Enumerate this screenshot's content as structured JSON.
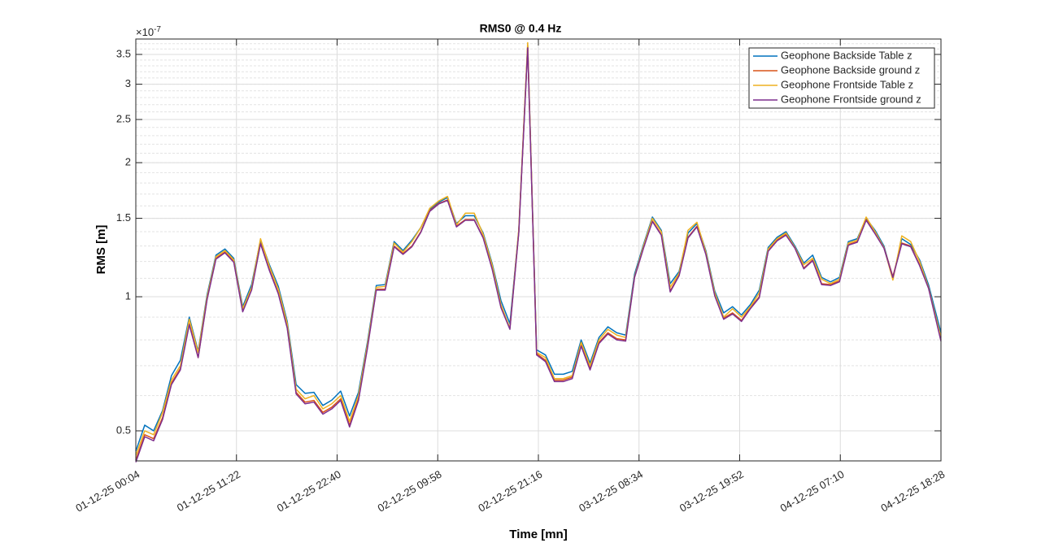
{
  "chart_data": {
    "type": "line",
    "title": "RMS0 @ 0.4 Hz",
    "x_label": "Time [mn]",
    "y_label": "RMS [m]",
    "y_multiplier": "×10",
    "y_exponent": "-7",
    "log_y": true,
    "grid": true,
    "minor_grid": true,
    "legend": "northeast",
    "xlim": [
      "01-12-25 00:04",
      "04-12-25 18:28"
    ],
    "xticks": [
      "01-12-25 00:04",
      "01-12-25 11:22",
      "01-12-25 22:40",
      "02-12-25 09:58",
      "02-12-25 21:16",
      "03-12-25 08:34",
      "03-12-25 19:52",
      "04-12-25 07:10",
      "04-12-25 18:28"
    ],
    "ylim": [
      0.428,
      3.79
    ],
    "yticks": [
      0.5,
      1,
      1.5,
      2,
      2.5,
      3,
      3.5
    ],
    "yminorticks": [
      0.5,
      0.6,
      0.7,
      0.8,
      0.9,
      1,
      1.1,
      1.2,
      1.3,
      1.4,
      1.5,
      1.6,
      1.7,
      1.8,
      1.9,
      2,
      2.1,
      2.2,
      2.3,
      2.4,
      2.5,
      2.6,
      2.7,
      2.8,
      2.9,
      3,
      3.1,
      3.2,
      3.3,
      3.4,
      3.5,
      3.6,
      3.7
    ],
    "x": [
      "01-12-25 00:04",
      "01-12-25 01:04",
      "01-12-25 02:04",
      "01-12-25 03:04",
      "01-12-25 04:04",
      "01-12-25 05:04",
      "01-12-25 06:04",
      "01-12-25 07:04",
      "01-12-25 08:04",
      "01-12-25 09:04",
      "01-12-25 10:04",
      "01-12-25 11:04",
      "01-12-25 12:04",
      "01-12-25 13:04",
      "01-12-25 14:04",
      "01-12-25 15:04",
      "01-12-25 16:04",
      "01-12-25 17:04",
      "01-12-25 18:04",
      "01-12-25 19:04",
      "01-12-25 20:04",
      "01-12-25 21:04",
      "01-12-25 22:04",
      "01-12-25 23:04",
      "02-12-25 00:04",
      "02-12-25 01:04",
      "02-12-25 02:04",
      "02-12-25 03:04",
      "02-12-25 04:04",
      "02-12-25 05:04",
      "02-12-25 06:04",
      "02-12-25 07:04",
      "02-12-25 08:04",
      "02-12-25 09:04",
      "02-12-25 10:04",
      "02-12-25 11:04",
      "02-12-25 12:04",
      "02-12-25 13:04",
      "02-12-25 14:04",
      "02-12-25 15:04",
      "02-12-25 16:04",
      "02-12-25 17:04",
      "02-12-25 18:04",
      "02-12-25 19:04",
      "02-12-25 20:04",
      "02-12-25 21:04",
      "02-12-25 22:04",
      "02-12-25 23:04",
      "03-12-25 00:04",
      "03-12-25 01:04",
      "03-12-25 02:04",
      "03-12-25 03:04",
      "03-12-25 04:04",
      "03-12-25 05:04",
      "03-12-25 06:04",
      "03-12-25 07:04",
      "03-12-25 08:04",
      "03-12-25 09:04",
      "03-12-25 10:04",
      "03-12-25 11:04",
      "03-12-25 12:04",
      "03-12-25 13:04",
      "03-12-25 14:04",
      "03-12-25 15:04",
      "03-12-25 16:04",
      "03-12-25 17:04",
      "03-12-25 18:04",
      "03-12-25 19:04",
      "03-12-25 20:04",
      "03-12-25 21:04",
      "03-12-25 22:04",
      "03-12-25 23:04",
      "04-12-25 00:04",
      "04-12-25 01:04",
      "04-12-25 02:04",
      "04-12-25 03:04",
      "04-12-25 04:04",
      "04-12-25 05:04",
      "04-12-25 06:04",
      "04-12-25 07:04",
      "04-12-25 08:04",
      "04-12-25 09:04",
      "04-12-25 10:04",
      "04-12-25 11:04",
      "04-12-25 12:04",
      "04-12-25 13:04",
      "04-12-25 14:04",
      "04-12-25 15:04",
      "04-12-25 16:04",
      "04-12-25 17:04",
      "04-12-25 18:28"
    ],
    "series": [
      {
        "name": "Geophone Backside Table z",
        "color": "#0072bd",
        "values": [
          0.45,
          0.515,
          0.5,
          0.555,
          0.665,
          0.72,
          0.9,
          0.755,
          1.01,
          1.24,
          1.28,
          1.22,
          0.95,
          1.065,
          1.34,
          1.18,
          1.055,
          0.88,
          0.635,
          0.607,
          0.61,
          0.57,
          0.586,
          0.614,
          0.54,
          0.61,
          0.79,
          1.06,
          1.065,
          1.33,
          1.27,
          1.34,
          1.43,
          1.57,
          1.63,
          1.67,
          1.46,
          1.52,
          1.52,
          1.39,
          1.19,
          0.98,
          0.87,
          1.41,
          3.67,
          0.76,
          0.74,
          0.67,
          0.67,
          0.68,
          0.8,
          0.71,
          0.81,
          0.856,
          0.83,
          0.82,
          1.125,
          1.31,
          1.51,
          1.41,
          1.07,
          1.14,
          1.39,
          1.46,
          1.27,
          1.03,
          0.92,
          0.95,
          0.91,
          0.96,
          1.035,
          1.29,
          1.36,
          1.4,
          1.3,
          1.19,
          1.24,
          1.105,
          1.08,
          1.105,
          1.33,
          1.35,
          1.5,
          1.41,
          1.3,
          1.1,
          1.35,
          1.31,
          1.21,
          1.065,
          0.83
        ]
      },
      {
        "name": "Geophone Backside ground z",
        "color": "#d95319",
        "values": [
          0.43,
          0.49,
          0.48,
          0.535,
          0.64,
          0.69,
          0.87,
          0.73,
          0.99,
          1.22,
          1.26,
          1.2,
          0.93,
          1.04,
          1.32,
          1.15,
          1.02,
          0.855,
          0.61,
          0.58,
          0.585,
          0.55,
          0.565,
          0.59,
          0.515,
          0.59,
          0.77,
          1.04,
          1.04,
          1.3,
          1.25,
          1.3,
          1.4,
          1.56,
          1.62,
          1.65,
          1.44,
          1.49,
          1.49,
          1.36,
          1.16,
          0.95,
          0.85,
          1.4,
          3.66,
          0.745,
          0.72,
          0.65,
          0.65,
          0.66,
          0.78,
          0.69,
          0.79,
          0.83,
          0.805,
          0.8,
          1.11,
          1.29,
          1.48,
          1.38,
          1.03,
          1.12,
          1.36,
          1.44,
          1.25,
          1.01,
          0.895,
          0.92,
          0.885,
          0.945,
          1.0,
          1.27,
          1.34,
          1.38,
          1.29,
          1.16,
          1.21,
          1.07,
          1.065,
          1.085,
          1.31,
          1.33,
          1.49,
          1.39,
          1.29,
          1.11,
          1.32,
          1.3,
          1.18,
          1.05,
          0.8
        ]
      },
      {
        "name": "Geophone Frontside Table z",
        "color": "#edb120",
        "values": [
          0.44,
          0.5,
          0.49,
          0.55,
          0.65,
          0.7,
          0.89,
          0.75,
          1.0,
          1.23,
          1.27,
          1.21,
          0.94,
          1.05,
          1.35,
          1.17,
          1.04,
          0.87,
          0.62,
          0.59,
          0.6,
          0.56,
          0.575,
          0.6,
          0.525,
          0.6,
          0.78,
          1.05,
          1.055,
          1.32,
          1.26,
          1.33,
          1.43,
          1.58,
          1.64,
          1.68,
          1.45,
          1.54,
          1.54,
          1.38,
          1.18,
          0.96,
          0.85,
          1.42,
          3.72,
          0.75,
          0.73,
          0.655,
          0.655,
          0.665,
          0.79,
          0.7,
          0.8,
          0.845,
          0.82,
          0.81,
          1.11,
          1.3,
          1.5,
          1.4,
          1.05,
          1.13,
          1.41,
          1.47,
          1.26,
          1.02,
          0.9,
          0.94,
          0.9,
          0.95,
          1.02,
          1.28,
          1.35,
          1.39,
          1.29,
          1.18,
          1.22,
          1.095,
          1.07,
          1.095,
          1.32,
          1.34,
          1.51,
          1.4,
          1.29,
          1.09,
          1.37,
          1.33,
          1.2,
          1.05,
          0.81
        ]
      },
      {
        "name": "Geophone Frontside ground z",
        "color": "#7e2f8e",
        "values": [
          0.425,
          0.485,
          0.475,
          0.53,
          0.635,
          0.685,
          0.865,
          0.73,
          0.985,
          1.215,
          1.255,
          1.195,
          0.925,
          1.035,
          1.315,
          1.145,
          1.015,
          0.85,
          0.605,
          0.575,
          0.58,
          0.545,
          0.56,
          0.585,
          0.51,
          0.585,
          0.765,
          1.035,
          1.035,
          1.295,
          1.245,
          1.295,
          1.395,
          1.555,
          1.615,
          1.645,
          1.435,
          1.485,
          1.485,
          1.355,
          1.155,
          0.945,
          0.845,
          1.395,
          3.62,
          0.74,
          0.715,
          0.645,
          0.645,
          0.655,
          0.775,
          0.685,
          0.785,
          0.825,
          0.8,
          0.795,
          1.105,
          1.285,
          1.475,
          1.375,
          1.025,
          1.115,
          1.355,
          1.435,
          1.245,
          1.005,
          0.89,
          0.915,
          0.88,
          0.94,
          0.995,
          1.265,
          1.335,
          1.375,
          1.285,
          1.155,
          1.205,
          1.065,
          1.06,
          1.08,
          1.305,
          1.325,
          1.485,
          1.385,
          1.285,
          1.105,
          1.315,
          1.295,
          1.175,
          1.045,
          0.795
        ]
      }
    ]
  }
}
